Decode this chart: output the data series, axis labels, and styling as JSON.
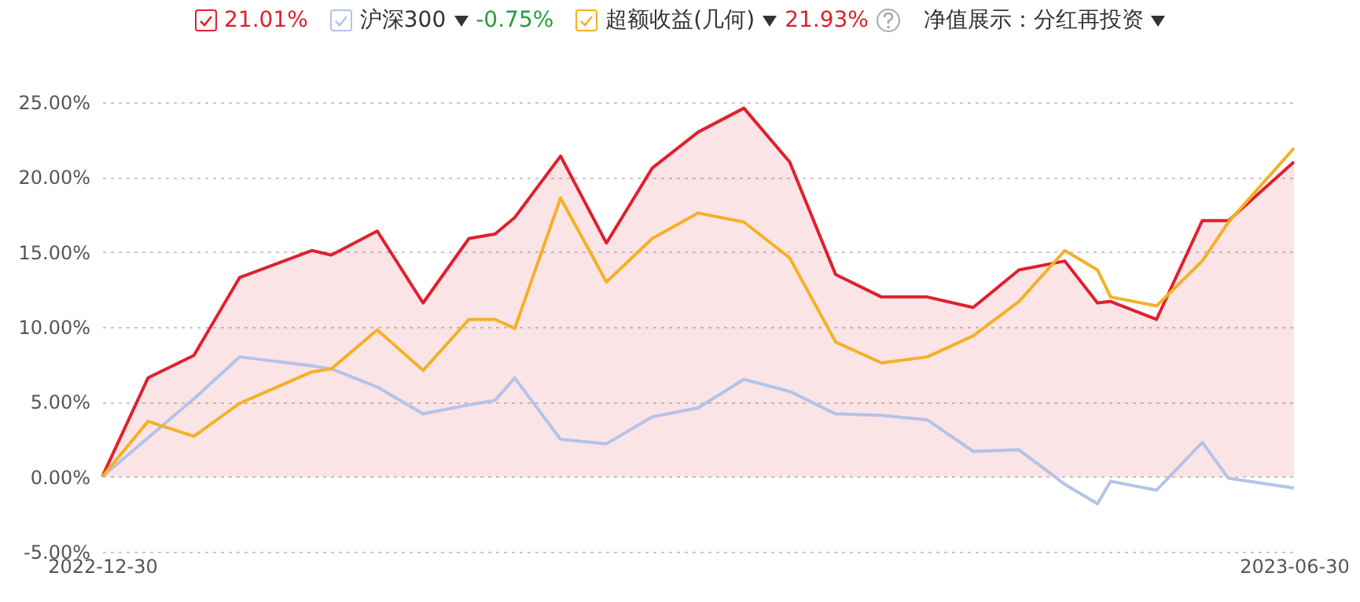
{
  "chart_data": {
    "type": "line",
    "x": [
      "2022-12-30",
      "2023-01-06",
      "2023-01-13",
      "2023-01-20",
      "2023-01-31",
      "2023-02-03",
      "2023-02-10",
      "2023-02-17",
      "2023-02-24",
      "2023-02-28",
      "2023-03-03",
      "2023-03-10",
      "2023-03-17",
      "2023-03-24",
      "2023-03-31",
      "2023-04-07",
      "2023-04-14",
      "2023-04-21",
      "2023-04-28",
      "2023-05-05",
      "2023-05-12",
      "2023-05-19",
      "2023-05-26",
      "2023-05-31",
      "2023-06-02",
      "2023-06-09",
      "2023-06-16",
      "2023-06-20",
      "2023-06-30"
    ],
    "series": [
      {
        "type": "area",
        "color": "#e0202e",
        "values": [
          0,
          6.6,
          8.1,
          13.3,
          15.1,
          14.8,
          16.4,
          11.6,
          15.9,
          16.2,
          17.3,
          21.4,
          15.6,
          20.6,
          23.0,
          24.6,
          21.0,
          13.5,
          12.0,
          12.0,
          11.3,
          13.8,
          14.4,
          11.6,
          11.7,
          10.5,
          17.1,
          17.1,
          21.01
        ]
      },
      {
        "name": "沪深300",
        "color": "#b4c3e8",
        "values": [
          0,
          2.6,
          5.2,
          8.0,
          7.4,
          7.2,
          6.0,
          4.2,
          4.8,
          5.1,
          6.6,
          2.5,
          2.2,
          4.0,
          4.6,
          6.5,
          5.7,
          4.2,
          4.1,
          3.8,
          1.7,
          1.8,
          -0.5,
          -1.8,
          -0.3,
          -0.9,
          2.3,
          -0.1,
          -0.75
        ]
      },
      {
        "name": "超额收益(几何)",
        "color": "#f5b025",
        "values": [
          0,
          3.7,
          2.7,
          4.9,
          7.0,
          7.2,
          9.8,
          7.1,
          10.5,
          10.5,
          9.9,
          18.6,
          13.0,
          15.9,
          17.6,
          17.0,
          14.6,
          9.0,
          7.6,
          8.0,
          9.4,
          11.7,
          15.1,
          13.8,
          12.0,
          11.4,
          14.4,
          17.0,
          21.93
        ]
      }
    ],
    "xlim": [
      "2022-12-30",
      "2023-06-30"
    ],
    "xticks": [
      "2022-12-30",
      "2023-06-30"
    ],
    "ylim": [
      -5,
      25
    ],
    "yticks": [
      {
        "value": -5,
        "label": "-5.00%"
      },
      {
        "value": 0,
        "label": "0.00%"
      },
      {
        "value": 5,
        "label": "5.00%"
      },
      {
        "value": 10,
        "label": "10.00%"
      },
      {
        "value": 15,
        "label": "15.00%"
      },
      {
        "value": 20,
        "label": "20.00%"
      },
      {
        "value": 25,
        "label": "25.00%"
      }
    ],
    "grid": "y",
    "legend": "top",
    "marker": "none",
    "line_style": "solid",
    "annotations": [
      "21.01%",
      "-0.75%",
      "21.93%",
      "净值展示：分红再投资"
    ]
  }
}
